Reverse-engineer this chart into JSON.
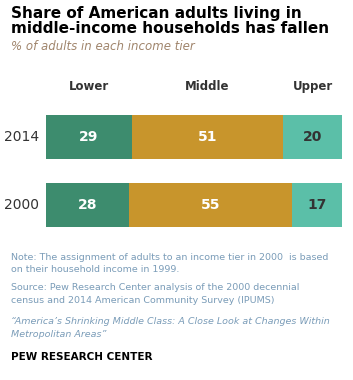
{
  "title_line1": "Share of American adults living in",
  "title_line2": "middle-income households has fallen",
  "subtitle": "% of adults in each income tier",
  "years": [
    "2014",
    "2000"
  ],
  "lower_values": [
    29,
    28
  ],
  "middle_values": [
    51,
    55
  ],
  "upper_values": [
    20,
    17
  ],
  "lower_color": "#3d8c6e",
  "middle_color": "#c8952c",
  "upper_color": "#5bbfa8",
  "lower_label": "Lower",
  "middle_label": "Middle",
  "upper_label": "Upper",
  "note_text": "Note: The assignment of adults to an income tier in 2000  is based\non their household income in 1999.",
  "source_text": "Source: Pew Research Center analysis of the 2000 decennial\ncensus and 2014 American Community Survey (IPUMS)",
  "quote_text": "“America’s Shrinking Middle Class: A Close Look at Changes Within\nMetropolitan Areas”",
  "footer_text": "PEW RESEARCH CENTER",
  "text_color_white": "#ffffff",
  "text_color_dark": "#333333",
  "note_color": "#7a9cb8",
  "background_color": "#ffffff"
}
